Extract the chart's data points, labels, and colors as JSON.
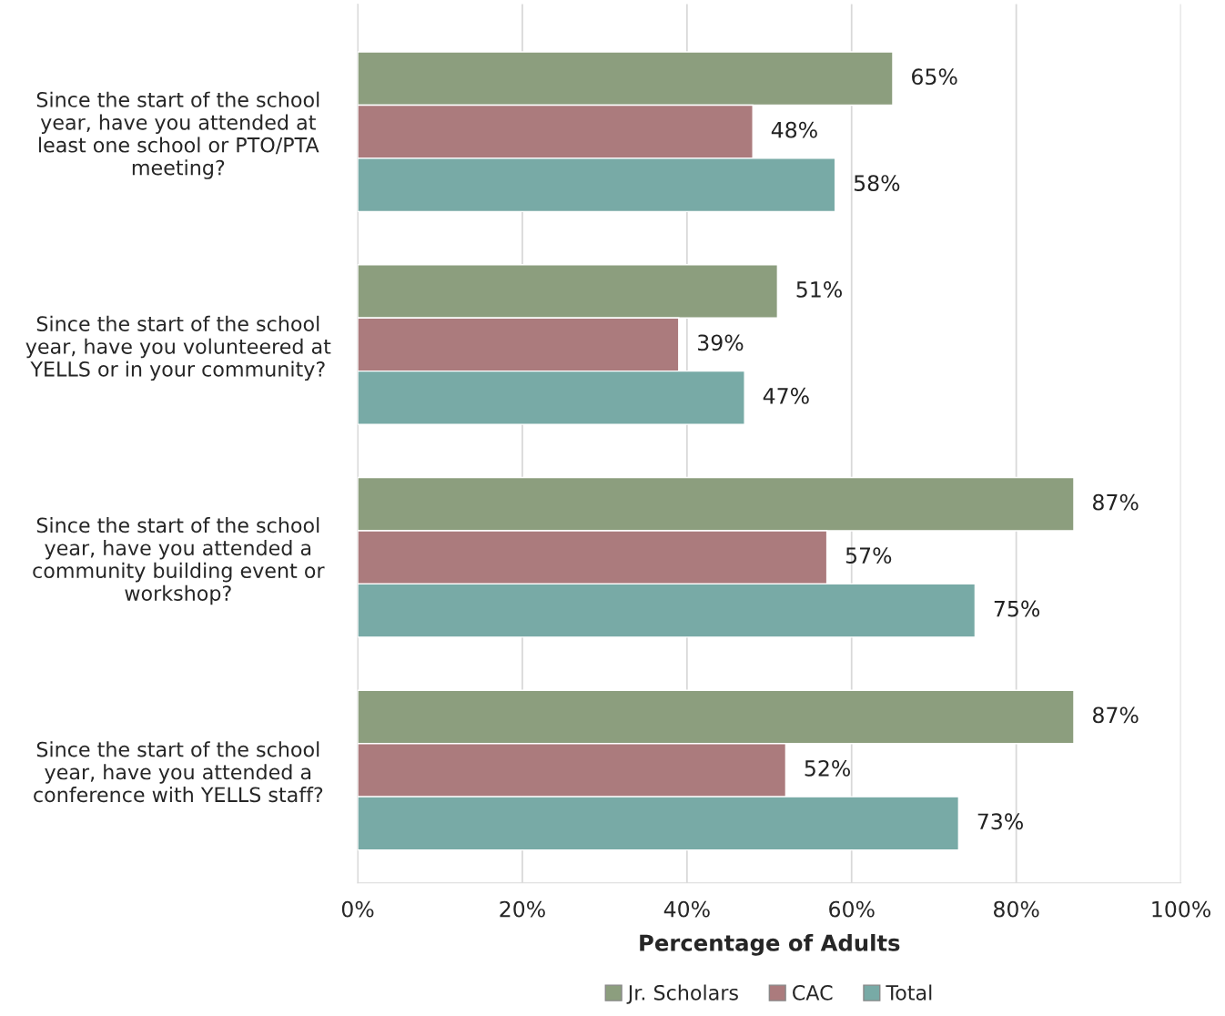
{
  "chart_data": {
    "type": "bar",
    "orientation": "horizontal",
    "xlabel": "Percentage of Adults",
    "categories": [
      "Since the start of the school\nyear, have you attended at\nleast one school or PTO/PTA\nmeeting?",
      "Since the start of the school\nyear, have you volunteered at\nYELLS or in your community?",
      "Since the start of the school\nyear, have you attended a\ncommunity building event or\nworkshop?",
      "Since the start of the school\nyear, have you attended a\nconference with YELLS staff?"
    ],
    "series": [
      {
        "name": "Jr. Scholars",
        "color": "#8c9e7e",
        "values": [
          65,
          51,
          87,
          87
        ],
        "value_labels": [
          "65%",
          "51%",
          "87%",
          "87%"
        ]
      },
      {
        "name": "CAC",
        "color": "#ab7b7d",
        "values": [
          48,
          39,
          57,
          52
        ],
        "value_labels": [
          "48%",
          "39%",
          "57%",
          "52%"
        ]
      },
      {
        "name": "Total",
        "color": "#78aaa6",
        "values": [
          58,
          47,
          75,
          73
        ],
        "value_labels": [
          "58%",
          "47%",
          "75%",
          "73%"
        ]
      }
    ],
    "xlim": [
      0,
      100
    ],
    "xticks": [
      {
        "value": 0,
        "label": "0%"
      },
      {
        "value": 20,
        "label": "20%"
      },
      {
        "value": 40,
        "label": "40%"
      },
      {
        "value": 60,
        "label": "60%"
      },
      {
        "value": 80,
        "label": "80%"
      },
      {
        "value": 100,
        "label": "100%"
      }
    ],
    "grid": "x",
    "legend": "bottom"
  }
}
